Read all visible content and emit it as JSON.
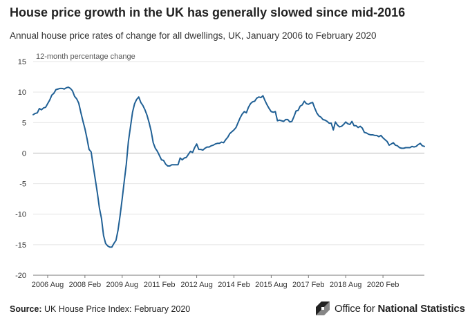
{
  "header": {
    "title": "House price growth in the UK has generally slowed since mid-2016",
    "subtitle": "Annual house price rates of change for all dwellings, UK, January 2006 to February 2020"
  },
  "footer": {
    "source_label": "Source:",
    "source_text": "UK House Price Index: February 2020",
    "logo_text_regular": "Office for ",
    "logo_text_bold": "National Statistics"
  },
  "chart_data": {
    "type": "line",
    "title": "House price growth in the UK has generally slowed since mid-2016",
    "ylabel": "12-month percentage change",
    "xlabel": "",
    "ylim": [
      -20,
      15
    ],
    "yticks": [
      15,
      10,
      5,
      0,
      -5,
      -10,
      -15,
      -20
    ],
    "xticks": [
      "2006 Aug",
      "2008 Feb",
      "2009 Aug",
      "2011 Feb",
      "2012 Aug",
      "2014 Feb",
      "2015 Aug",
      "2017 Feb",
      "2018 Aug",
      "2020 Feb"
    ],
    "x_start": "2006 Jan",
    "x_end": "2020 Feb",
    "grid": true,
    "line_color": "#206095",
    "series": [
      {
        "values": [
          6.3,
          6.5,
          6.6,
          7.3,
          7.1,
          7.4,
          7.5,
          8.1,
          8.7,
          9.5,
          9.8,
          10.4,
          10.5,
          10.6,
          10.6,
          10.5,
          10.7,
          10.8,
          10.6,
          10.2,
          9.3,
          8.9,
          8.2,
          6.7,
          5.3,
          4.0,
          2.4,
          0.6,
          0.2,
          -2.1,
          -4.3,
          -6.5,
          -9.0,
          -10.7,
          -13.5,
          -14.8,
          -15.2,
          -15.4,
          -15.4,
          -14.8,
          -14.3,
          -12.6,
          -10.2,
          -7.5,
          -4.6,
          -1.8,
          1.9,
          4.3,
          6.7,
          8.1,
          8.8,
          9.2,
          8.3,
          7.8,
          7.1,
          6.2,
          5.0,
          3.6,
          1.7,
          0.8,
          0.3,
          -0.4,
          -1.1,
          -1.2,
          -1.8,
          -2.1,
          -2.1,
          -1.9,
          -1.9,
          -1.9,
          -1.9,
          -0.8,
          -1.1,
          -0.8,
          -0.7,
          -0.2,
          0.3,
          0.1,
          0.9,
          1.5,
          0.6,
          0.6,
          0.5,
          0.8,
          1.0,
          1.0,
          1.2,
          1.3,
          1.5,
          1.6,
          1.6,
          1.8,
          1.7,
          2.2,
          2.6,
          3.2,
          3.5,
          3.8,
          4.2,
          5.0,
          5.8,
          6.4,
          6.8,
          6.6,
          7.5,
          8.1,
          8.4,
          8.5,
          9.0,
          9.2,
          9.1,
          9.4,
          8.6,
          7.9,
          7.3,
          6.8,
          6.7,
          6.8,
          5.3,
          5.4,
          5.3,
          5.2,
          5.5,
          5.5,
          5.1,
          5.2,
          6.0,
          6.9,
          7.0,
          7.7,
          7.9,
          8.5,
          8.1,
          8.0,
          8.2,
          8.3,
          7.4,
          6.6,
          6.1,
          5.9,
          5.5,
          5.4,
          5.2,
          4.9,
          4.9,
          3.8,
          5.1,
          4.6,
          4.3,
          4.4,
          4.7,
          5.1,
          4.8,
          4.7,
          5.2,
          4.5,
          4.5,
          4.2,
          4.4,
          4.1,
          3.4,
          3.3,
          3.1,
          3.0,
          3.0,
          2.9,
          2.9,
          2.7,
          2.9,
          2.5,
          2.2,
          1.9,
          1.3,
          1.5,
          1.7,
          1.3,
          1.2,
          0.9,
          0.8,
          0.8,
          0.9,
          0.9,
          0.9,
          1.1,
          1.0,
          1.1,
          1.4,
          1.6,
          1.2,
          1.1
        ]
      }
    ]
  }
}
